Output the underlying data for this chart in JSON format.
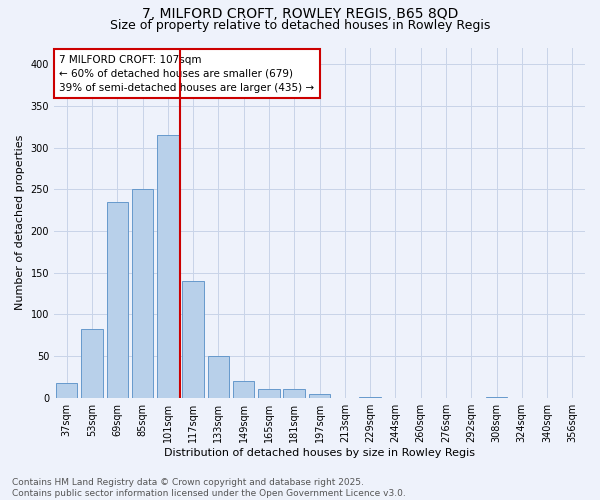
{
  "title_line1": "7, MILFORD CROFT, ROWLEY REGIS, B65 8QD",
  "title_line2": "Size of property relative to detached houses in Rowley Regis",
  "categories": [
    "37sqm",
    "53sqm",
    "69sqm",
    "85sqm",
    "101sqm",
    "117sqm",
    "133sqm",
    "149sqm",
    "165sqm",
    "181sqm",
    "197sqm",
    "213sqm",
    "229sqm",
    "244sqm",
    "260sqm",
    "276sqm",
    "292sqm",
    "308sqm",
    "324sqm",
    "340sqm",
    "356sqm"
  ],
  "values": [
    18,
    82,
    235,
    250,
    315,
    140,
    50,
    20,
    10,
    10,
    5,
    0,
    1,
    0,
    0,
    0,
    0,
    1,
    0,
    0,
    0
  ],
  "bar_color": "#b8d0ea",
  "bar_edge_color": "#6699cc",
  "marker_line_color": "#cc0000",
  "annotation_line1": "7 MILFORD CROFT: 107sqm",
  "annotation_line2": "← 60% of detached houses are smaller (679)",
  "annotation_line3": "39% of semi-detached houses are larger (435) →",
  "annotation_box_facecolor": "#ffffff",
  "annotation_box_edgecolor": "#cc0000",
  "ylabel": "Number of detached properties",
  "xlabel": "Distribution of detached houses by size in Rowley Regis",
  "ylim": [
    0,
    420
  ],
  "yticks": [
    0,
    50,
    100,
    150,
    200,
    250,
    300,
    350,
    400
  ],
  "footer_line1": "Contains HM Land Registry data © Crown copyright and database right 2025.",
  "footer_line2": "Contains public sector information licensed under the Open Government Licence v3.0.",
  "background_color": "#eef2fb",
  "grid_color": "#c8d4e8",
  "title_fontsize": 10,
  "subtitle_fontsize": 9,
  "axis_label_fontsize": 8,
  "tick_fontsize": 7,
  "annotation_fontsize": 7.5,
  "footer_fontsize": 6.5
}
